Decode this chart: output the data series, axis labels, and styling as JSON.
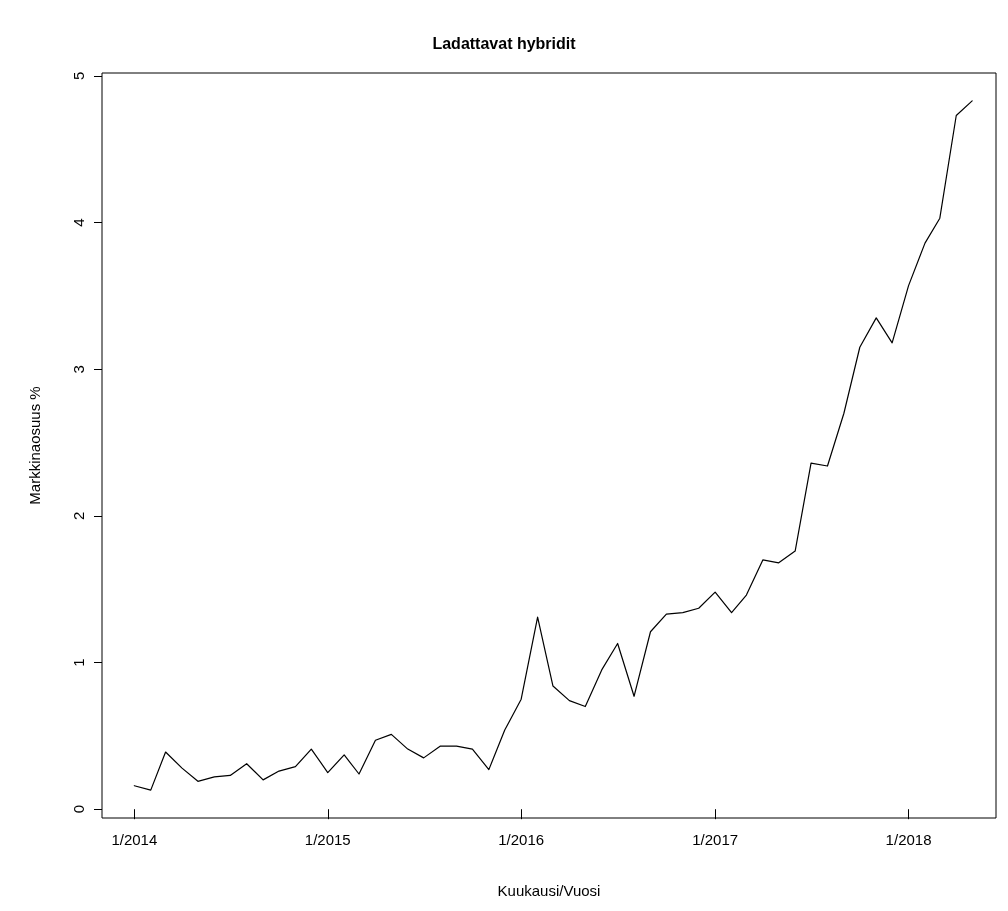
{
  "chart_data": {
    "type": "line",
    "title": "Ladattavat hybridit",
    "xlabel": "Kuukausi/Vuosi",
    "ylabel": "Markkinaosuus %",
    "x": [
      "2014-01",
      "2014-02",
      "2014-03",
      "2014-04",
      "2014-05",
      "2014-06",
      "2014-07",
      "2014-08",
      "2014-09",
      "2014-10",
      "2014-11",
      "2014-12",
      "2015-01",
      "2015-02",
      "2015-03",
      "2015-04",
      "2015-05",
      "2015-06",
      "2015-07",
      "2015-08",
      "2015-09",
      "2015-10",
      "2015-11",
      "2015-12",
      "2016-01",
      "2016-02",
      "2016-03",
      "2016-04",
      "2016-05",
      "2016-06",
      "2016-07",
      "2016-08",
      "2016-09",
      "2016-10",
      "2016-11",
      "2016-12",
      "2017-01",
      "2017-02",
      "2017-03",
      "2017-04",
      "2017-05",
      "2017-06",
      "2017-07",
      "2017-08",
      "2017-09",
      "2017-10",
      "2017-11",
      "2017-12",
      "2018-01",
      "2018-02",
      "2018-03",
      "2018-04",
      "2018-05"
    ],
    "series": [
      {
        "color": "#000000",
        "values": [
          0.16,
          0.13,
          0.39,
          0.28,
          0.19,
          0.22,
          0.23,
          0.31,
          0.2,
          0.26,
          0.29,
          0.41,
          0.25,
          0.37,
          0.24,
          0.47,
          0.51,
          0.41,
          0.35,
          0.43,
          0.43,
          0.41,
          0.27,
          0.54,
          0.75,
          1.31,
          0.84,
          0.74,
          0.7,
          0.95,
          1.13,
          0.77,
          1.21,
          1.33,
          1.34,
          1.37,
          1.48,
          1.34,
          1.46,
          1.7,
          1.68,
          1.76,
          2.36,
          2.34,
          2.7,
          3.15,
          3.35,
          3.18,
          3.57,
          3.86,
          4.03,
          4.73,
          4.83
        ]
      }
    ],
    "xlim": [
      "2013-11-01",
      "2018-06-15"
    ],
    "xticks": [
      {
        "value": "2014-01",
        "label": "1/2014"
      },
      {
        "value": "2015-01",
        "label": "1/2015"
      },
      {
        "value": "2016-01",
        "label": "1/2016"
      },
      {
        "value": "2017-01",
        "label": "1/2017"
      },
      {
        "value": "2018-01",
        "label": "1/2018"
      }
    ],
    "ylim": [
      -0.06,
      5.02
    ],
    "yticks": [
      0,
      1,
      2,
      3,
      4,
      5
    ],
    "grid": false,
    "marker": "none",
    "line_style": "solid"
  }
}
